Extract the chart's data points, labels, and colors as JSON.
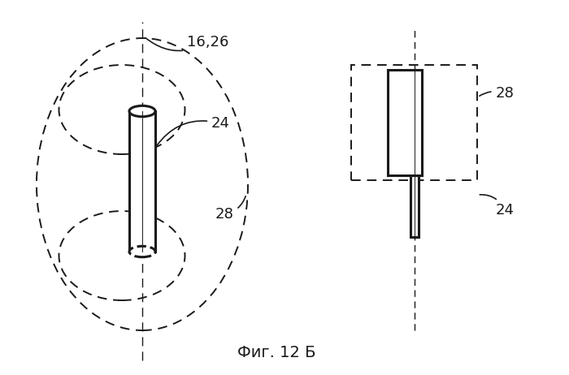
{
  "bg_color": "#ffffff",
  "line_color": "#1a1a1a",
  "caption": "Фиг. 12 Б",
  "caption_fontsize": 14,
  "label_fontsize": 13
}
